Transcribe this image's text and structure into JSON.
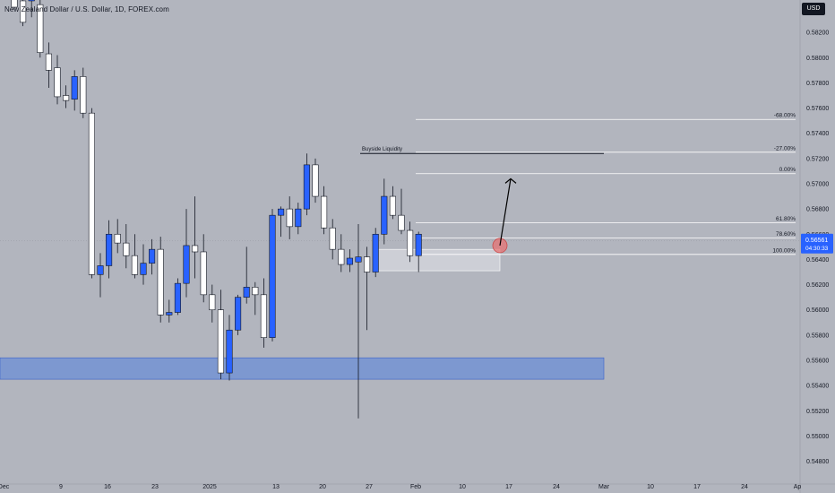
{
  "header": {
    "symbol_title": "New Zealand Dollar / U.S. Dollar, 1D, FOREX.com",
    "currency_button": "USD"
  },
  "price_tag": {
    "price": "0.56561",
    "countdown": "04:30:33"
  },
  "annotations": {
    "buyside_label": "Buyside Liquidity",
    "buyside_level": 0.5724,
    "fib_levels": [
      {
        "label": "-68.00%",
        "price": 0.5751
      },
      {
        "label": "-27.00%",
        "price": 0.5725
      },
      {
        "label": "0.00%",
        "price": 0.5708
      },
      {
        "label": "61.80%",
        "price": 0.5669
      },
      {
        "label": "78.60%",
        "price": 0.5657
      },
      {
        "label": "100.00%",
        "price": 0.5644
      }
    ],
    "demand_zone": {
      "top": 0.5562,
      "bottom": 0.5545
    },
    "entry_zone": {
      "top": 0.5648,
      "bottom": 0.5631
    }
  },
  "colors": {
    "background": "#b2b5be",
    "bull": "#2962ff",
    "bear": "#ffffff",
    "zone": "#6b8fd6",
    "marker": "#e57373"
  },
  "chart_data": {
    "type": "candlestick",
    "y_axis": {
      "range": [
        0.5474,
        0.584
      ],
      "ticks": [
        "0.58200",
        "0.58000",
        "0.57800",
        "0.57600",
        "0.57400",
        "0.57200",
        "0.57000",
        "0.56800",
        "0.56600",
        "0.56400",
        "0.56200",
        "0.56000",
        "0.55800",
        "0.55600",
        "0.55400",
        "0.55200",
        "0.55000",
        "0.54800"
      ]
    },
    "x_axis": {
      "ticks": [
        "Dec",
        "9",
        "16",
        "23",
        "2025",
        "13",
        "20",
        "27",
        "Feb",
        "10",
        "17",
        "24",
        "Mar",
        "10",
        "17",
        "24",
        "Ap"
      ]
    },
    "candles": [
      {
        "o": 0.5855,
        "h": 0.5872,
        "l": 0.5838,
        "c": 0.584
      },
      {
        "o": 0.5845,
        "h": 0.586,
        "l": 0.5825,
        "c": 0.5828
      },
      {
        "o": 0.5845,
        "h": 0.5858,
        "l": 0.5832,
        "c": 0.5848
      },
      {
        "o": 0.5842,
        "h": 0.5855,
        "l": 0.58,
        "c": 0.5804
      },
      {
        "o": 0.5803,
        "h": 0.5812,
        "l": 0.5776,
        "c": 0.579
      },
      {
        "o": 0.5792,
        "h": 0.5802,
        "l": 0.5763,
        "c": 0.5769
      },
      {
        "o": 0.577,
        "h": 0.5778,
        "l": 0.576,
        "c": 0.5766
      },
      {
        "o": 0.5767,
        "h": 0.579,
        "l": 0.5758,
        "c": 0.5785
      },
      {
        "o": 0.5785,
        "h": 0.5792,
        "l": 0.5752,
        "c": 0.5756
      },
      {
        "o": 0.5756,
        "h": 0.576,
        "l": 0.5625,
        "c": 0.5628
      },
      {
        "o": 0.5628,
        "h": 0.5645,
        "l": 0.561,
        "c": 0.5635
      },
      {
        "o": 0.5635,
        "h": 0.5671,
        "l": 0.5625,
        "c": 0.566
      },
      {
        "o": 0.566,
        "h": 0.5672,
        "l": 0.5645,
        "c": 0.5653
      },
      {
        "o": 0.5653,
        "h": 0.5668,
        "l": 0.5633,
        "c": 0.5643
      },
      {
        "o": 0.5643,
        "h": 0.566,
        "l": 0.5625,
        "c": 0.5628
      },
      {
        "o": 0.5628,
        "h": 0.5652,
        "l": 0.562,
        "c": 0.5637
      },
      {
        "o": 0.5637,
        "h": 0.5656,
        "l": 0.5628,
        "c": 0.5648
      },
      {
        "o": 0.5648,
        "h": 0.5658,
        "l": 0.559,
        "c": 0.5596
      },
      {
        "o": 0.5596,
        "h": 0.5608,
        "l": 0.559,
        "c": 0.5598
      },
      {
        "o": 0.5598,
        "h": 0.5625,
        "l": 0.5596,
        "c": 0.5621
      },
      {
        "o": 0.5621,
        "h": 0.568,
        "l": 0.561,
        "c": 0.5651
      },
      {
        "o": 0.5651,
        "h": 0.569,
        "l": 0.5625,
        "c": 0.5646
      },
      {
        "o": 0.5646,
        "h": 0.566,
        "l": 0.5606,
        "c": 0.5612
      },
      {
        "o": 0.5612,
        "h": 0.562,
        "l": 0.559,
        "c": 0.56
      },
      {
        "o": 0.56,
        "h": 0.5616,
        "l": 0.5545,
        "c": 0.555
      },
      {
        "o": 0.555,
        "h": 0.5596,
        "l": 0.5544,
        "c": 0.5584
      },
      {
        "o": 0.5584,
        "h": 0.5612,
        "l": 0.558,
        "c": 0.561
      },
      {
        "o": 0.561,
        "h": 0.565,
        "l": 0.5605,
        "c": 0.5618
      },
      {
        "o": 0.5618,
        "h": 0.5622,
        "l": 0.5596,
        "c": 0.5612
      },
      {
        "o": 0.5612,
        "h": 0.5625,
        "l": 0.557,
        "c": 0.5578
      },
      {
        "o": 0.5578,
        "h": 0.568,
        "l": 0.5575,
        "c": 0.5675
      },
      {
        "o": 0.5675,
        "h": 0.5682,
        "l": 0.5658,
        "c": 0.568
      },
      {
        "o": 0.568,
        "h": 0.569,
        "l": 0.5656,
        "c": 0.5666
      },
      {
        "o": 0.5666,
        "h": 0.5685,
        "l": 0.566,
        "c": 0.568
      },
      {
        "o": 0.568,
        "h": 0.5724,
        "l": 0.5675,
        "c": 0.5715
      },
      {
        "o": 0.5715,
        "h": 0.572,
        "l": 0.5685,
        "c": 0.569
      },
      {
        "o": 0.569,
        "h": 0.5698,
        "l": 0.566,
        "c": 0.5665
      },
      {
        "o": 0.5665,
        "h": 0.5672,
        "l": 0.564,
        "c": 0.5648
      },
      {
        "o": 0.5648,
        "h": 0.566,
        "l": 0.563,
        "c": 0.5636
      },
      {
        "o": 0.5636,
        "h": 0.5648,
        "l": 0.563,
        "c": 0.5641
      },
      {
        "o": 0.5638,
        "h": 0.5668,
        "l": 0.5514,
        "c": 0.5642
      },
      {
        "o": 0.5642,
        "h": 0.565,
        "l": 0.5584,
        "c": 0.563
      },
      {
        "o": 0.563,
        "h": 0.5665,
        "l": 0.5626,
        "c": 0.566
      },
      {
        "o": 0.566,
        "h": 0.5704,
        "l": 0.5652,
        "c": 0.569
      },
      {
        "o": 0.569,
        "h": 0.5698,
        "l": 0.5672,
        "c": 0.5675
      },
      {
        "o": 0.5675,
        "h": 0.5696,
        "l": 0.566,
        "c": 0.5663
      },
      {
        "o": 0.5663,
        "h": 0.567,
        "l": 0.5638,
        "c": 0.5643
      },
      {
        "o": 0.5643,
        "h": 0.5662,
        "l": 0.563,
        "c": 0.566
      }
    ]
  }
}
